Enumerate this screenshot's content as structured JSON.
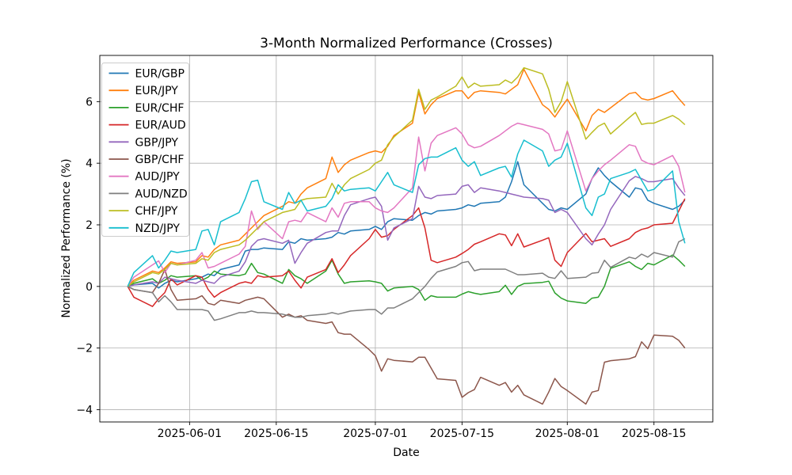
{
  "chart_data": {
    "type": "line",
    "title": "3-Month Normalized Performance (Crosses)",
    "xlabel": "Date",
    "ylabel": "Normalized Performance (%)",
    "grid": true,
    "legend_position": "upper left",
    "background_color": "#ffffff",
    "grid_color": "#b0b0b0",
    "spine_color": "#000000",
    "text_color": "#000000",
    "line_width": 1.5,
    "ylim": [
      -4.4,
      7.5
    ],
    "xlim_days": [
      -4.5,
      94.5
    ],
    "x_start_date": "2025-05-22",
    "x_end_date": "2025-08-20",
    "y_ticks": [
      -4,
      -2,
      0,
      2,
      4,
      6
    ],
    "x_ticks": [
      {
        "day": 10,
        "label": "2025-06-01"
      },
      {
        "day": 24,
        "label": "2025-06-15"
      },
      {
        "day": 40,
        "label": "2025-07-01"
      },
      {
        "day": 54,
        "label": "2025-07-15"
      },
      {
        "day": 71,
        "label": "2025-08-01"
      },
      {
        "day": 85,
        "label": "2025-08-15"
      }
    ],
    "day_offsets": [
      0,
      1,
      4,
      5,
      6,
      7,
      8,
      11,
      12,
      13,
      14,
      15,
      18,
      19,
      20,
      21,
      22,
      25,
      26,
      27,
      28,
      29,
      32,
      33,
      34,
      35,
      36,
      39,
      40,
      41,
      42,
      43,
      46,
      47,
      48,
      49,
      50,
      53,
      54,
      55,
      56,
      57,
      60,
      61,
      62,
      63,
      64,
      67,
      68,
      69,
      70,
      71,
      74,
      75,
      76,
      77,
      78,
      81,
      82,
      83,
      84,
      85,
      88,
      89,
      90
    ],
    "series": [
      {
        "name": "EUR/GBP",
        "color": "#1f77b4",
        "values": [
          0,
          0.05,
          0.1,
          -0.05,
          0.1,
          0.2,
          0.15,
          0.25,
          0.3,
          0.4,
          0.35,
          0.55,
          0.7,
          1.15,
          1.2,
          1.2,
          1.25,
          1.2,
          1.45,
          1.4,
          1.55,
          1.5,
          1.55,
          1.6,
          1.75,
          1.7,
          1.8,
          1.85,
          1.95,
          1.85,
          2.1,
          2.2,
          2.15,
          2.3,
          2.4,
          2.35,
          2.45,
          2.5,
          2.55,
          2.65,
          2.6,
          2.7,
          2.75,
          2.9,
          3.4,
          4.05,
          3.3,
          2.7,
          2.5,
          2.45,
          2.55,
          2.5,
          3.0,
          3.5,
          3.85,
          3.6,
          3.4,
          2.9,
          3.2,
          3.15,
          2.8,
          2.7,
          2.5,
          2.6,
          2.8
        ]
      },
      {
        "name": "EUR/JPY",
        "color": "#ff7f0e",
        "values": [
          0,
          0.2,
          0.5,
          0.45,
          0.6,
          0.8,
          0.75,
          0.8,
          1.0,
          0.95,
          1.2,
          1.35,
          1.5,
          1.7,
          1.9,
          2.1,
          2.3,
          2.6,
          2.75,
          2.7,
          3.0,
          3.2,
          3.5,
          4.2,
          3.7,
          3.95,
          4.1,
          4.35,
          4.4,
          4.35,
          4.55,
          4.9,
          5.3,
          6.3,
          5.6,
          5.9,
          6.1,
          6.35,
          6.35,
          6.1,
          6.3,
          6.35,
          6.3,
          6.25,
          6.4,
          6.55,
          7.05,
          5.9,
          5.75,
          5.5,
          5.8,
          6.08,
          5.05,
          5.55,
          5.75,
          5.65,
          5.8,
          6.26,
          6.3,
          6.1,
          6.05,
          6.1,
          6.35,
          6.1,
          5.87
        ]
      },
      {
        "name": "EUR/CHF",
        "color": "#2ca02c",
        "values": [
          0,
          0.1,
          0.25,
          0.1,
          0.2,
          0.35,
          0.3,
          0.35,
          0.2,
          0.3,
          0.5,
          0.4,
          0.35,
          0.4,
          0.75,
          0.45,
          0.4,
          0.1,
          0.55,
          0.35,
          0.25,
          0.1,
          0.5,
          0.85,
          0.4,
          0.1,
          0.15,
          0.18,
          0.15,
          0.1,
          -0.15,
          -0.05,
          0.0,
          -0.1,
          -0.45,
          -0.3,
          -0.35,
          -0.35,
          -0.25,
          -0.17,
          -0.22,
          -0.26,
          -0.17,
          0.04,
          -0.26,
          0.0,
          0.09,
          0.13,
          0.17,
          -0.21,
          -0.38,
          -0.47,
          -0.55,
          -0.38,
          -0.35,
          0.0,
          0.59,
          0.8,
          0.65,
          0.55,
          0.75,
          0.7,
          1.02,
          0.85,
          0.65
        ]
      },
      {
        "name": "EUR/AUD",
        "color": "#d62728",
        "values": [
          0,
          -0.35,
          -0.65,
          -0.4,
          -0.2,
          0.25,
          0.05,
          0.35,
          0.3,
          -0.1,
          -0.35,
          -0.2,
          0.1,
          0.15,
          0.1,
          0.35,
          0.3,
          0.35,
          0.5,
          0.2,
          -0.05,
          0.3,
          0.55,
          0.9,
          0.45,
          0.7,
          1.0,
          1.55,
          1.85,
          1.6,
          1.65,
          1.85,
          2.3,
          2.55,
          1.9,
          0.85,
          0.77,
          0.95,
          1.07,
          1.2,
          1.37,
          1.45,
          1.71,
          1.67,
          1.32,
          1.71,
          1.28,
          1.5,
          1.58,
          0.85,
          0.65,
          1.1,
          1.72,
          1.45,
          1.5,
          1.55,
          1.3,
          1.55,
          1.75,
          1.85,
          1.9,
          2.0,
          2.05,
          2.45,
          2.85
        ]
      },
      {
        "name": "GBP/JPY",
        "color": "#9467bd",
        "values": [
          0,
          0.05,
          0.15,
          0.1,
          0.3,
          0.25,
          0.2,
          0.1,
          0.2,
          0.15,
          0.1,
          0.3,
          0.5,
          0.8,
          1.3,
          1.5,
          1.55,
          1.4,
          1.5,
          0.75,
          1.1,
          1.4,
          1.75,
          1.8,
          1.8,
          2.3,
          2.65,
          2.85,
          2.9,
          2.6,
          1.5,
          1.9,
          2.2,
          3.25,
          2.9,
          2.85,
          2.95,
          3.0,
          3.25,
          3.3,
          3.05,
          3.2,
          3.1,
          3.05,
          3.0,
          2.95,
          2.9,
          2.85,
          2.8,
          2.4,
          2.5,
          2.4,
          1.55,
          1.35,
          1.7,
          2.0,
          2.5,
          3.43,
          3.57,
          3.5,
          3.4,
          3.4,
          3.5,
          3.2,
          2.95
        ]
      },
      {
        "name": "GBP/CHF",
        "color": "#8c564b",
        "values": [
          0,
          -0.1,
          -0.2,
          0.1,
          0.55,
          -0.1,
          -0.45,
          -0.4,
          -0.3,
          -0.55,
          -0.6,
          -0.45,
          -0.55,
          -0.45,
          -0.4,
          -0.35,
          -0.4,
          -1.0,
          -0.9,
          -1.0,
          -0.95,
          -1.1,
          -1.2,
          -1.15,
          -1.5,
          -1.55,
          -1.55,
          -2.05,
          -2.25,
          -2.75,
          -2.35,
          -2.4,
          -2.45,
          -2.3,
          -2.3,
          -2.65,
          -3.0,
          -3.05,
          -3.6,
          -3.45,
          -3.35,
          -2.95,
          -3.21,
          -3.12,
          -3.43,
          -3.21,
          -3.52,
          -3.82,
          -3.43,
          -2.99,
          -3.25,
          -3.38,
          -3.82,
          -3.43,
          -3.38,
          -2.46,
          -2.41,
          -2.35,
          -2.28,
          -1.8,
          -2.02,
          -1.58,
          -1.62,
          -1.75,
          -2.0
        ]
      },
      {
        "name": "AUD/JPY",
        "color": "#e377c2",
        "values": [
          0,
          0.3,
          0.7,
          0.83,
          0.45,
          0.75,
          0.7,
          0.85,
          1.1,
          0.6,
          0.65,
          0.75,
          1.05,
          1.3,
          2.45,
          1.85,
          2.1,
          1.55,
          2.1,
          2.15,
          2.1,
          2.4,
          2.1,
          2.55,
          2.25,
          2.7,
          2.75,
          2.75,
          2.55,
          2.45,
          2.4,
          2.55,
          3.2,
          4.85,
          3.75,
          4.65,
          4.9,
          5.15,
          4.95,
          4.6,
          4.5,
          4.55,
          4.9,
          5.05,
          5.2,
          5.3,
          5.25,
          5.1,
          4.95,
          4.4,
          4.45,
          5.05,
          3.1,
          3.5,
          3.75,
          3.95,
          4.1,
          4.6,
          4.55,
          4.1,
          4.0,
          3.95,
          4.25,
          3.9,
          3.05
        ]
      },
      {
        "name": "AUD/NZD",
        "color": "#7f7f7f",
        "values": [
          0,
          -0.1,
          -0.2,
          -0.5,
          -0.3,
          -0.5,
          -0.75,
          -0.75,
          -0.75,
          -0.8,
          -1.1,
          -1.05,
          -0.85,
          -0.85,
          -0.8,
          -0.85,
          -0.85,
          -0.9,
          -0.95,
          -1.0,
          -1.0,
          -0.95,
          -0.9,
          -0.85,
          -0.9,
          -0.85,
          -0.8,
          -0.75,
          -0.75,
          -0.9,
          -0.7,
          -0.7,
          -0.4,
          -0.2,
          0.0,
          0.26,
          0.47,
          0.65,
          0.77,
          0.81,
          0.51,
          0.56,
          0.56,
          0.56,
          0.47,
          0.38,
          0.38,
          0.43,
          0.3,
          0.26,
          0.51,
          0.26,
          0.3,
          0.43,
          0.45,
          0.85,
          0.62,
          0.95,
          0.9,
          1.05,
          0.95,
          1.1,
          0.95,
          1.45,
          1.55
        ]
      },
      {
        "name": "CHF/JPY",
        "color": "#bcbd22",
        "values": [
          0,
          0.15,
          0.45,
          0.4,
          0.55,
          0.75,
          0.7,
          0.75,
          0.9,
          0.85,
          1.1,
          1.2,
          1.35,
          1.5,
          1.7,
          1.9,
          2.1,
          2.4,
          2.45,
          2.5,
          2.8,
          2.85,
          2.9,
          3.35,
          3.0,
          3.3,
          3.5,
          3.8,
          4.0,
          4.1,
          4.6,
          4.85,
          5.4,
          6.4,
          5.75,
          6.05,
          6.15,
          6.5,
          6.8,
          6.45,
          6.6,
          6.5,
          6.55,
          6.7,
          6.6,
          6.8,
          7.1,
          6.9,
          6.4,
          5.65,
          6.0,
          6.65,
          4.78,
          5.0,
          5.2,
          5.3,
          4.95,
          5.48,
          5.65,
          5.26,
          5.3,
          5.3,
          5.55,
          5.43,
          5.25
        ]
      },
      {
        "name": "NZD/JPY",
        "color": "#17becf",
        "values": [
          0,
          0.45,
          1.0,
          0.6,
          0.85,
          1.15,
          1.1,
          1.2,
          1.8,
          1.85,
          1.35,
          2.1,
          2.4,
          2.85,
          3.4,
          3.45,
          2.75,
          2.5,
          3.05,
          2.7,
          2.8,
          2.45,
          2.6,
          2.85,
          3.3,
          3.1,
          3.15,
          3.2,
          3.1,
          3.4,
          3.7,
          3.3,
          3.05,
          3.95,
          4.15,
          4.2,
          4.2,
          4.5,
          4.1,
          3.9,
          4.05,
          3.6,
          3.85,
          3.9,
          3.55,
          4.3,
          4.75,
          4.4,
          3.9,
          4.1,
          4.2,
          4.65,
          2.55,
          2.3,
          2.9,
          3.0,
          3.5,
          3.7,
          3.8,
          3.45,
          3.1,
          3.15,
          3.75,
          2.1,
          1.4
        ]
      }
    ]
  }
}
